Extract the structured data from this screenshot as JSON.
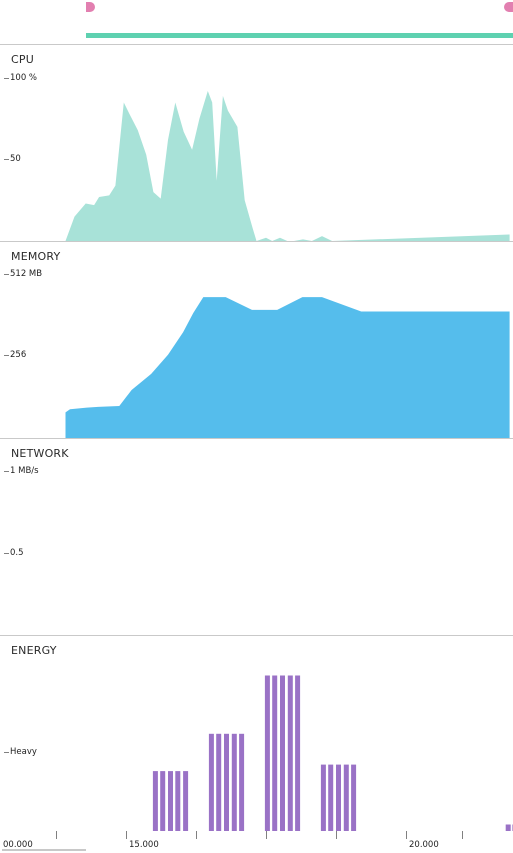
{
  "timeline": {
    "range_color": "#5ed1b0",
    "marker_color": "#e27fb0"
  },
  "panes": {
    "cpu": {
      "title": "CPU",
      "ticks": [
        {
          "label": "100 %"
        },
        {
          "label": "50"
        }
      ],
      "color": "#a8e2d8"
    },
    "memory": {
      "title": "MEMORY",
      "ticks": [
        {
          "label": "512 MB"
        },
        {
          "label": "256"
        }
      ],
      "color": "#55bdec"
    },
    "network": {
      "title": "NETWORK",
      "ticks": [
        {
          "label": "1 MB/s"
        },
        {
          "label": "0.5"
        }
      ]
    },
    "energy": {
      "title": "ENERGY",
      "ticks": [
        {
          "label": "Heavy"
        }
      ],
      "color": "#9a72c6"
    }
  },
  "axis": {
    "labels": [
      "00.000",
      "15.000",
      "20.000"
    ]
  },
  "chart_data": [
    {
      "type": "area",
      "title": "CPU",
      "ylabel": "%",
      "ylim": [
        0,
        100
      ],
      "x": [
        13.92,
        14.08,
        14.28,
        14.43,
        14.52,
        14.7,
        14.81,
        14.96,
        15.06,
        15.21,
        15.36,
        15.49,
        15.62,
        15.75,
        15.88,
        16.03,
        16.18,
        16.31,
        16.46,
        16.54,
        16.62,
        16.73,
        16.82,
        16.99,
        17.12,
        17.26,
        17.33,
        17.5,
        17.61,
        17.75,
        17.88,
        18.0,
        18.16,
        18.32,
        18.5,
        18.68,
        21.85
      ],
      "values": [
        0,
        15,
        23,
        22,
        27,
        28,
        34,
        85,
        78,
        68,
        53,
        30,
        26,
        62,
        85,
        67,
        56,
        75,
        92,
        85,
        37,
        89,
        80,
        70,
        25,
        8,
        0,
        2,
        0,
        2,
        0,
        0,
        1,
        0,
        3,
        0,
        4
      ]
    },
    {
      "type": "area",
      "title": "MEMORY",
      "ylabel": "MB",
      "ylim": [
        0,
        512
      ],
      "x": [
        13.92,
        14.0,
        14.3,
        14.5,
        14.88,
        15.1,
        15.45,
        15.75,
        16.02,
        16.2,
        16.38,
        16.78,
        17.25,
        17.7,
        18.15,
        18.5,
        19.2,
        20.0,
        20.8,
        21.85
      ],
      "values": [
        80,
        90,
        95,
        97,
        100,
        150,
        200,
        260,
        330,
        390,
        440,
        440,
        400,
        400,
        440,
        440,
        395,
        395,
        395,
        395
      ]
    },
    {
      "type": "area",
      "title": "NETWORK",
      "ylabel": "MB/s",
      "ylim": [
        0,
        1
      ],
      "x": [],
      "values": []
    },
    {
      "type": "bar",
      "title": "ENERGY",
      "ylim": [
        0,
        1
      ],
      "x": [
        15.48,
        15.61,
        15.75,
        15.88,
        16.02,
        16.48,
        16.61,
        16.75,
        16.89,
        17.02,
        17.48,
        17.61,
        17.75,
        17.89,
        18.02,
        18.48,
        18.61,
        18.75,
        18.89,
        19.02,
        21.78,
        21.9,
        22.02
      ],
      "values": [
        0.37,
        0.37,
        0.37,
        0.37,
        0.37,
        0.6,
        0.6,
        0.6,
        0.6,
        0.6,
        0.96,
        0.96,
        0.96,
        0.96,
        0.96,
        0.41,
        0.41,
        0.41,
        0.41,
        0.41,
        0.04,
        0.04,
        0.04
      ]
    }
  ]
}
